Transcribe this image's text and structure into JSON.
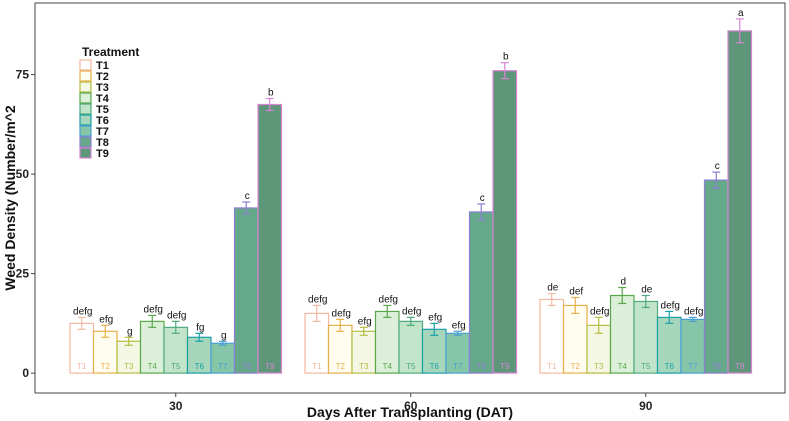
{
  "chart_data": {
    "type": "bar",
    "title": "",
    "xlabel": "Days After Transplanting (DAT)",
    "ylabel": "Weed Density (Number/m^2",
    "ylim": [
      -5,
      93
    ],
    "yticks": [
      0,
      25,
      50,
      75
    ],
    "grid": false,
    "legend_position": "top-left",
    "legend_title": "Treatment",
    "categories": [
      "30",
      "60",
      "90"
    ],
    "series": [
      {
        "name": "T1",
        "values": [
          12.5,
          15.0,
          18.5
        ],
        "errors": [
          1.5,
          2.0,
          1.5
        ],
        "letters": [
          "defg",
          "defg",
          "de"
        ],
        "fill": "#ffffff",
        "stroke": "#f2b8a2"
      },
      {
        "name": "T2",
        "values": [
          10.5,
          12.0,
          17.0
        ],
        "errors": [
          1.5,
          1.5,
          2.0
        ],
        "letters": [
          "efg",
          "defg",
          "def"
        ],
        "fill": "#fffdf0",
        "stroke": "#e8b04a"
      },
      {
        "name": "T3",
        "values": [
          8.0,
          10.5,
          12.0
        ],
        "errors": [
          1.0,
          1.0,
          2.0
        ],
        "letters": [
          "g",
          "efg",
          "defg"
        ],
        "fill": "#f3f7e3",
        "stroke": "#b5bd42"
      },
      {
        "name": "T4",
        "values": [
          13.0,
          15.5,
          19.5
        ],
        "errors": [
          1.5,
          1.5,
          2.0
        ],
        "letters": [
          "defg",
          "defg",
          "d"
        ],
        "fill": "#dcefd8",
        "stroke": "#5aa84b"
      },
      {
        "name": "T5",
        "values": [
          11.5,
          13.0,
          18.0
        ],
        "errors": [
          1.5,
          1.0,
          1.5
        ],
        "letters": [
          "defg",
          "defg",
          "de"
        ],
        "fill": "#c2e4c8",
        "stroke": "#4dab7d"
      },
      {
        "name": "T6",
        "values": [
          9.0,
          11.0,
          14.0
        ],
        "errors": [
          1.0,
          1.5,
          1.5
        ],
        "letters": [
          "fg",
          "efg",
          "defg"
        ],
        "fill": "#a6d6bb",
        "stroke": "#1aa0a8"
      },
      {
        "name": "T7",
        "values": [
          7.5,
          10.0,
          13.5
        ],
        "errors": [
          0.5,
          0.5,
          0.5
        ],
        "letters": [
          "g",
          "efg",
          "defg"
        ],
        "fill": "#86c6a8",
        "stroke": "#4a9fd4"
      },
      {
        "name": "T8",
        "values": [
          41.5,
          40.5,
          48.5
        ],
        "errors": [
          1.5,
          2.0,
          2.0
        ],
        "letters": [
          "c",
          "c",
          "c"
        ],
        "fill": "#66a88a",
        "stroke": "#8f7ed3"
      },
      {
        "name": "T9",
        "values": [
          67.5,
          76.0,
          86.0
        ],
        "errors": [
          1.5,
          2.0,
          3.0
        ],
        "letters": [
          "b",
          "b",
          "a"
        ],
        "fill": "#5e9679",
        "stroke": "#d985d4"
      }
    ]
  }
}
